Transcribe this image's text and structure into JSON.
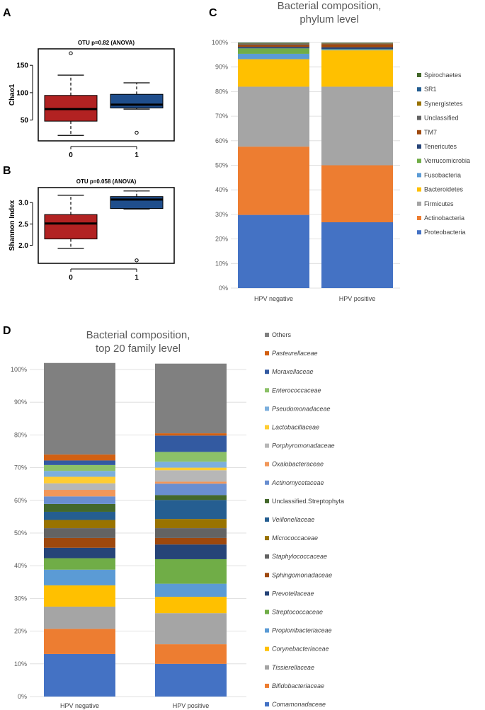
{
  "chart_data": [
    {
      "id": "A",
      "type": "box",
      "title": "OTU p=0.82 (ANOVA)",
      "xlabel": "",
      "ylabel": "Chao1",
      "ylim": [
        12,
        180
      ],
      "yticks": [
        50,
        100,
        150
      ],
      "categories": [
        "0",
        "1"
      ],
      "boxes": [
        {
          "name": "0",
          "color": "#b22222",
          "whisker_low": 22,
          "q1": 48,
          "median": 70,
          "q3": 95,
          "whisker_high": 132,
          "outliers": [
            172
          ]
        },
        {
          "name": "1",
          "color": "#1f4e8c",
          "whisker_low": 70,
          "q1": 72,
          "median": 78,
          "q3": 97,
          "whisker_high": 118,
          "outliers": [
            27
          ]
        }
      ]
    },
    {
      "id": "B",
      "type": "box",
      "title": "OTU p=0.058 (ANOVA)",
      "xlabel": "",
      "ylabel": "Shannon Index",
      "ylim": [
        1.58,
        3.35
      ],
      "yticks": [
        2.0,
        2.5,
        3.0
      ],
      "categories": [
        "0",
        "1"
      ],
      "boxes": [
        {
          "name": "0",
          "color": "#b22222",
          "whisker_low": 1.93,
          "q1": 2.15,
          "median": 2.51,
          "q3": 2.72,
          "whisker_high": 3.17,
          "outliers": []
        },
        {
          "name": "1",
          "color": "#1f4e8c",
          "whisker_low": 2.85,
          "q1": 2.86,
          "median": 3.07,
          "q3": 3.14,
          "whisker_high": 3.27,
          "outliers": [
            1.65
          ]
        }
      ]
    },
    {
      "id": "C",
      "type": "stacked-bar",
      "title_lines": [
        "Bacterial composition,",
        "phylum level"
      ],
      "categories": [
        "HPV negative",
        "HPV positive"
      ],
      "ylim": [
        0,
        100
      ],
      "yticks": [
        "0%",
        "10%",
        "20%",
        "30%",
        "40%",
        "50%",
        "60%",
        "70%",
        "80%",
        "90%",
        "100%"
      ],
      "legend_position": "right",
      "series": [
        {
          "name": "Proteobacteria",
          "color": "#4472c4",
          "values": [
            29.8,
            26.8
          ],
          "italic": false
        },
        {
          "name": "Actinobacteria",
          "color": "#ed7d31",
          "values": [
            27.8,
            23.2
          ],
          "italic": false
        },
        {
          "name": "Firmicutes",
          "color": "#a5a5a5",
          "values": [
            24.4,
            32.0
          ],
          "italic": false
        },
        {
          "name": "Bacteroidetes",
          "color": "#ffc000",
          "values": [
            11.2,
            14.8
          ],
          "italic": false
        },
        {
          "name": "Fusobacteria",
          "color": "#5b9bd5",
          "values": [
            2.2,
            0.3
          ],
          "italic": false
        },
        {
          "name": "Verrucomicrobia",
          "color": "#70ad47",
          "values": [
            2.2,
            0.2
          ],
          "italic": false
        },
        {
          "name": "Tenericutes",
          "color": "#264478",
          "values": [
            0.6,
            0.7
          ],
          "italic": false
        },
        {
          "name": "TM7",
          "color": "#9e480e",
          "values": [
            0.8,
            1.3
          ],
          "italic": false
        },
        {
          "name": "Unclassified",
          "color": "#636363",
          "values": [
            0.4,
            0.3
          ],
          "italic": false
        },
        {
          "name": "Synergistetes",
          "color": "#997300",
          "values": [
            0.2,
            0.2
          ],
          "italic": false
        },
        {
          "name": "SR1",
          "color": "#255e91",
          "values": [
            0.2,
            0.1
          ],
          "italic": false
        },
        {
          "name": "Spirochaetes",
          "color": "#43682b",
          "values": [
            0.2,
            0.1
          ],
          "italic": false
        }
      ]
    },
    {
      "id": "D",
      "type": "stacked-bar",
      "title_lines": [
        "Bacterial composition,",
        "top 20 family level"
      ],
      "categories": [
        "HPV negative",
        "HPV positive"
      ],
      "ylim": [
        0,
        100
      ],
      "yticks": [
        "0%",
        "10%",
        "20%",
        "30%",
        "40%",
        "50%",
        "60%",
        "70%",
        "80%",
        "90%",
        "100%"
      ],
      "legend_position": "right",
      "series": [
        {
          "name": "Comamonadaceae",
          "color": "#4472c4",
          "values": [
            13.0,
            10.0
          ],
          "italic": true
        },
        {
          "name": "Bifidobacteriaceae",
          "color": "#ed7d31",
          "values": [
            7.7,
            6.0
          ],
          "italic": true
        },
        {
          "name": "Tissierellaceae",
          "color": "#a5a5a5",
          "values": [
            6.8,
            9.5
          ],
          "italic": true
        },
        {
          "name": "Corynebacteriaceae",
          "color": "#ffc000",
          "values": [
            6.5,
            5.0
          ],
          "italic": true
        },
        {
          "name": "Propionibacteriaceae",
          "color": "#5b9bd5",
          "values": [
            4.8,
            4.0
          ],
          "italic": true
        },
        {
          "name": "Streptococcaceae",
          "color": "#70ad47",
          "values": [
            3.5,
            7.5
          ],
          "italic": true
        },
        {
          "name": "Prevotellaceae",
          "color": "#264478",
          "values": [
            3.2,
            4.5
          ],
          "italic": true
        },
        {
          "name": "Sphingomonadaceae",
          "color": "#9e480e",
          "values": [
            3.0,
            2.0
          ],
          "italic": true
        },
        {
          "name": "Staphylococcaceae",
          "color": "#636363",
          "values": [
            3.0,
            3.0
          ],
          "italic": true
        },
        {
          "name": "Micrococcaceae",
          "color": "#997300",
          "values": [
            2.5,
            2.8
          ],
          "italic": true
        },
        {
          "name": "Veillonellaceae",
          "color": "#255e91",
          "values": [
            2.5,
            5.8
          ],
          "italic": true
        },
        {
          "name": "Unclassified.Streptophyta",
          "color": "#43682b",
          "values": [
            2.4,
            1.5
          ],
          "italic": false
        },
        {
          "name": "Actinomycetaceae",
          "color": "#698ed0",
          "values": [
            2.3,
            3.5
          ],
          "italic": true
        },
        {
          "name": "Oxalobacteraceae",
          "color": "#f1975a",
          "values": [
            2.0,
            0.6
          ],
          "italic": true
        },
        {
          "name": "Porphyromonadaceae",
          "color": "#b7b7b7",
          "values": [
            2.0,
            3.5
          ],
          "italic": true
        },
        {
          "name": "Lactobacillaceae",
          "color": "#ffcd33",
          "values": [
            2.0,
            0.8
          ],
          "italic": true
        },
        {
          "name": "Pseudomonadaceae",
          "color": "#7cafdd",
          "values": [
            1.8,
            1.8
          ],
          "italic": true
        },
        {
          "name": "Enterococcaceae",
          "color": "#8cc168",
          "values": [
            1.8,
            3.0
          ],
          "italic": true
        },
        {
          "name": "Moraxellaceae",
          "color": "#335aa1",
          "values": [
            1.4,
            5.0
          ],
          "italic": true
        },
        {
          "name": "Pasteurellaceae",
          "color": "#d26012",
          "values": [
            1.8,
            0.7
          ],
          "italic": true
        },
        {
          "name": "Others",
          "color": "#808080",
          "values": [
            28.0,
            21.3
          ],
          "italic": false
        }
      ]
    }
  ]
}
